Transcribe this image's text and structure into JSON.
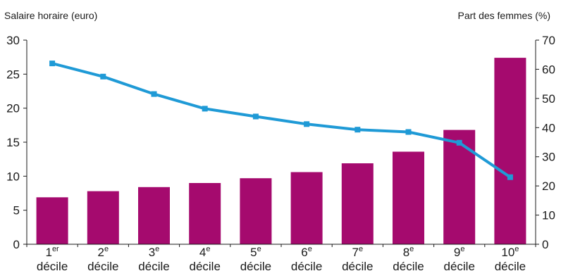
{
  "chart_data": {
    "type": "bar+line",
    "categories": [
      {
        "num": "1",
        "sup": "er",
        "word": "décile"
      },
      {
        "num": "2",
        "sup": "e",
        "word": "décile"
      },
      {
        "num": "3",
        "sup": "e",
        "word": "décile"
      },
      {
        "num": "4",
        "sup": "e",
        "word": "décile"
      },
      {
        "num": "5",
        "sup": "e",
        "word": "décile"
      },
      {
        "num": "6",
        "sup": "e",
        "word": "décile"
      },
      {
        "num": "7",
        "sup": "e",
        "word": "décile"
      },
      {
        "num": "8",
        "sup": "e",
        "word": "décile"
      },
      {
        "num": "9",
        "sup": "e",
        "word": "décile"
      },
      {
        "num": "10",
        "sup": "e",
        "word": "décile"
      }
    ],
    "series": [
      {
        "axis": "left",
        "kind": "bar",
        "color": "#a50a6e",
        "values": [
          6.9,
          7.8,
          8.4,
          9.0,
          9.7,
          10.6,
          11.9,
          13.6,
          16.8,
          27.4
        ]
      },
      {
        "axis": "right",
        "kind": "line",
        "color": "#1f9ad6",
        "values": [
          62,
          57.5,
          51.5,
          46.5,
          43.8,
          41.2,
          39.3,
          38.5,
          34.8,
          23
        ]
      }
    ],
    "ylabel": "Salaire horaire (euro)",
    "y2label": "Part des femmes (%)",
    "ylim": [
      0,
      30
    ],
    "y2lim": [
      0,
      70
    ],
    "yticks": [
      0,
      5,
      10,
      15,
      20,
      25,
      30
    ],
    "y2ticks": [
      0,
      10,
      20,
      30,
      40,
      50,
      60,
      70
    ],
    "grid": false,
    "legend": "none"
  }
}
